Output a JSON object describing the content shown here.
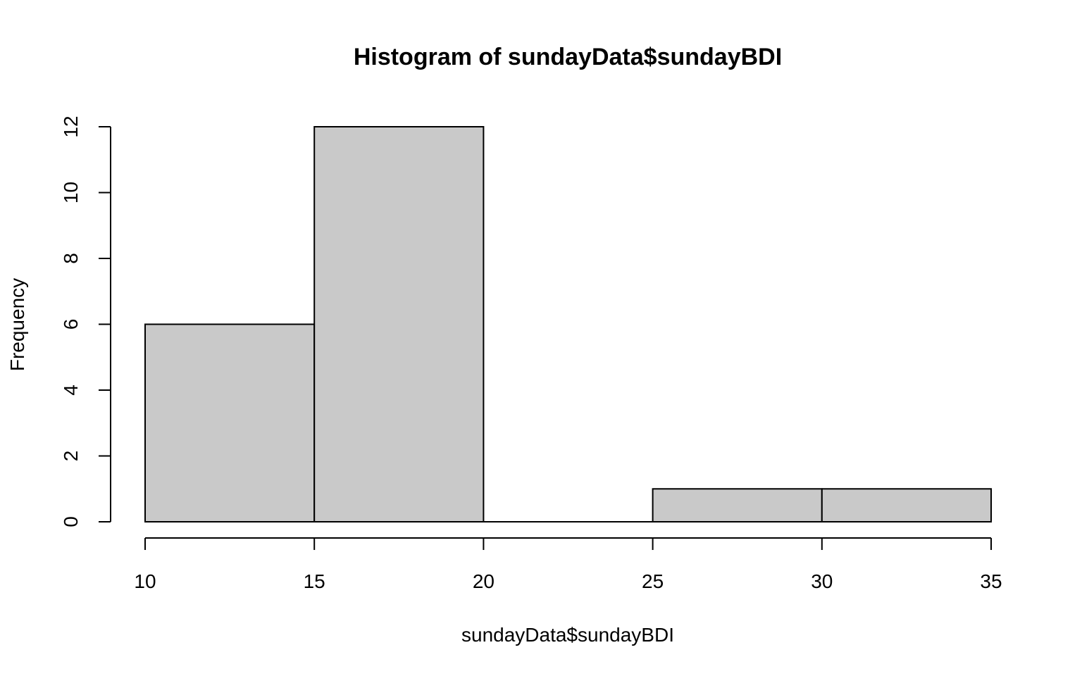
{
  "chart_data": {
    "type": "histogram",
    "title": "Histogram of sundayData$sundayBDI",
    "xlabel": "sundayData$sundayBDI",
    "ylabel": "Frequency",
    "bins": [
      {
        "start": 10,
        "end": 15,
        "count": 6
      },
      {
        "start": 15,
        "end": 20,
        "count": 12
      },
      {
        "start": 20,
        "end": 25,
        "count": 0
      },
      {
        "start": 25,
        "end": 30,
        "count": 1
      },
      {
        "start": 30,
        "end": 35,
        "count": 1
      }
    ],
    "xticks": [
      10,
      15,
      20,
      25,
      30,
      35
    ],
    "yticks": [
      0,
      2,
      4,
      6,
      8,
      10,
      12
    ],
    "xlim": [
      10,
      35
    ],
    "ylim": [
      0,
      12
    ],
    "bar_fill": "#c9c9c9",
    "bar_stroke": "#000000",
    "grid": false,
    "legend": "none"
  }
}
